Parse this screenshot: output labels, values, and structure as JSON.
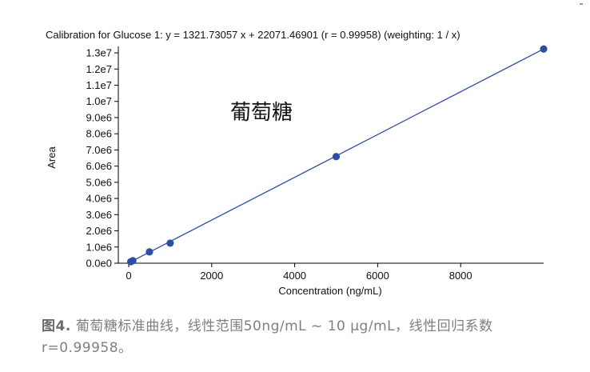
{
  "chart_data": {
    "type": "scatter",
    "title": "Calibration for Glucose 1: y = 1321.73057 x + 22071.46901 (r = 0.99958)  (weighting: 1 / x)",
    "xlabel": "Concentration (ng/mL)",
    "ylabel": "Area",
    "annotation": "葡萄糖",
    "xlim": [
      -250,
      10000
    ],
    "ylim": [
      0,
      13300000
    ],
    "x_ticks": [
      0,
      2000,
      4000,
      6000,
      8000
    ],
    "x_tick_labels": [
      "0",
      "2000",
      "4000",
      "6000",
      "8000"
    ],
    "y_ticks": [
      0,
      1000000,
      2000000,
      3000000,
      4000000,
      5000000,
      6000000,
      7000000,
      8000000,
      9000000,
      10000000,
      11000000,
      12000000,
      13000000
    ],
    "y_tick_labels": [
      "0.0e0",
      "1.0e6",
      "2.0e6",
      "3.0e6",
      "4.0e6",
      "5.0e6",
      "6.0e6",
      "7.0e6",
      "8.0e6",
      "9.0e6",
      "1.0e7",
      "1.1e7",
      "1.2e7",
      "1.3e7"
    ],
    "grid": false,
    "fit_line": {
      "slope": 1321.73057,
      "intercept": 22071.46901,
      "x_range": [
        0,
        10000
      ]
    },
    "series": [
      {
        "x": [
          50,
          100,
          500,
          1000,
          5000,
          10000
        ],
        "y": [
          90000,
          155000,
          700000,
          1240000,
          6590000,
          13240000
        ]
      }
    ],
    "colors": {
      "points": "#2e4ea2",
      "line": "#2e4ea2",
      "axis": "#000000"
    }
  },
  "caption": {
    "figure_number": "图4.",
    "text": " 葡萄糖标准曲线，线性范围50ng/mL ~ 10 μg/mL，线性回归系数 r=0.99958。"
  }
}
